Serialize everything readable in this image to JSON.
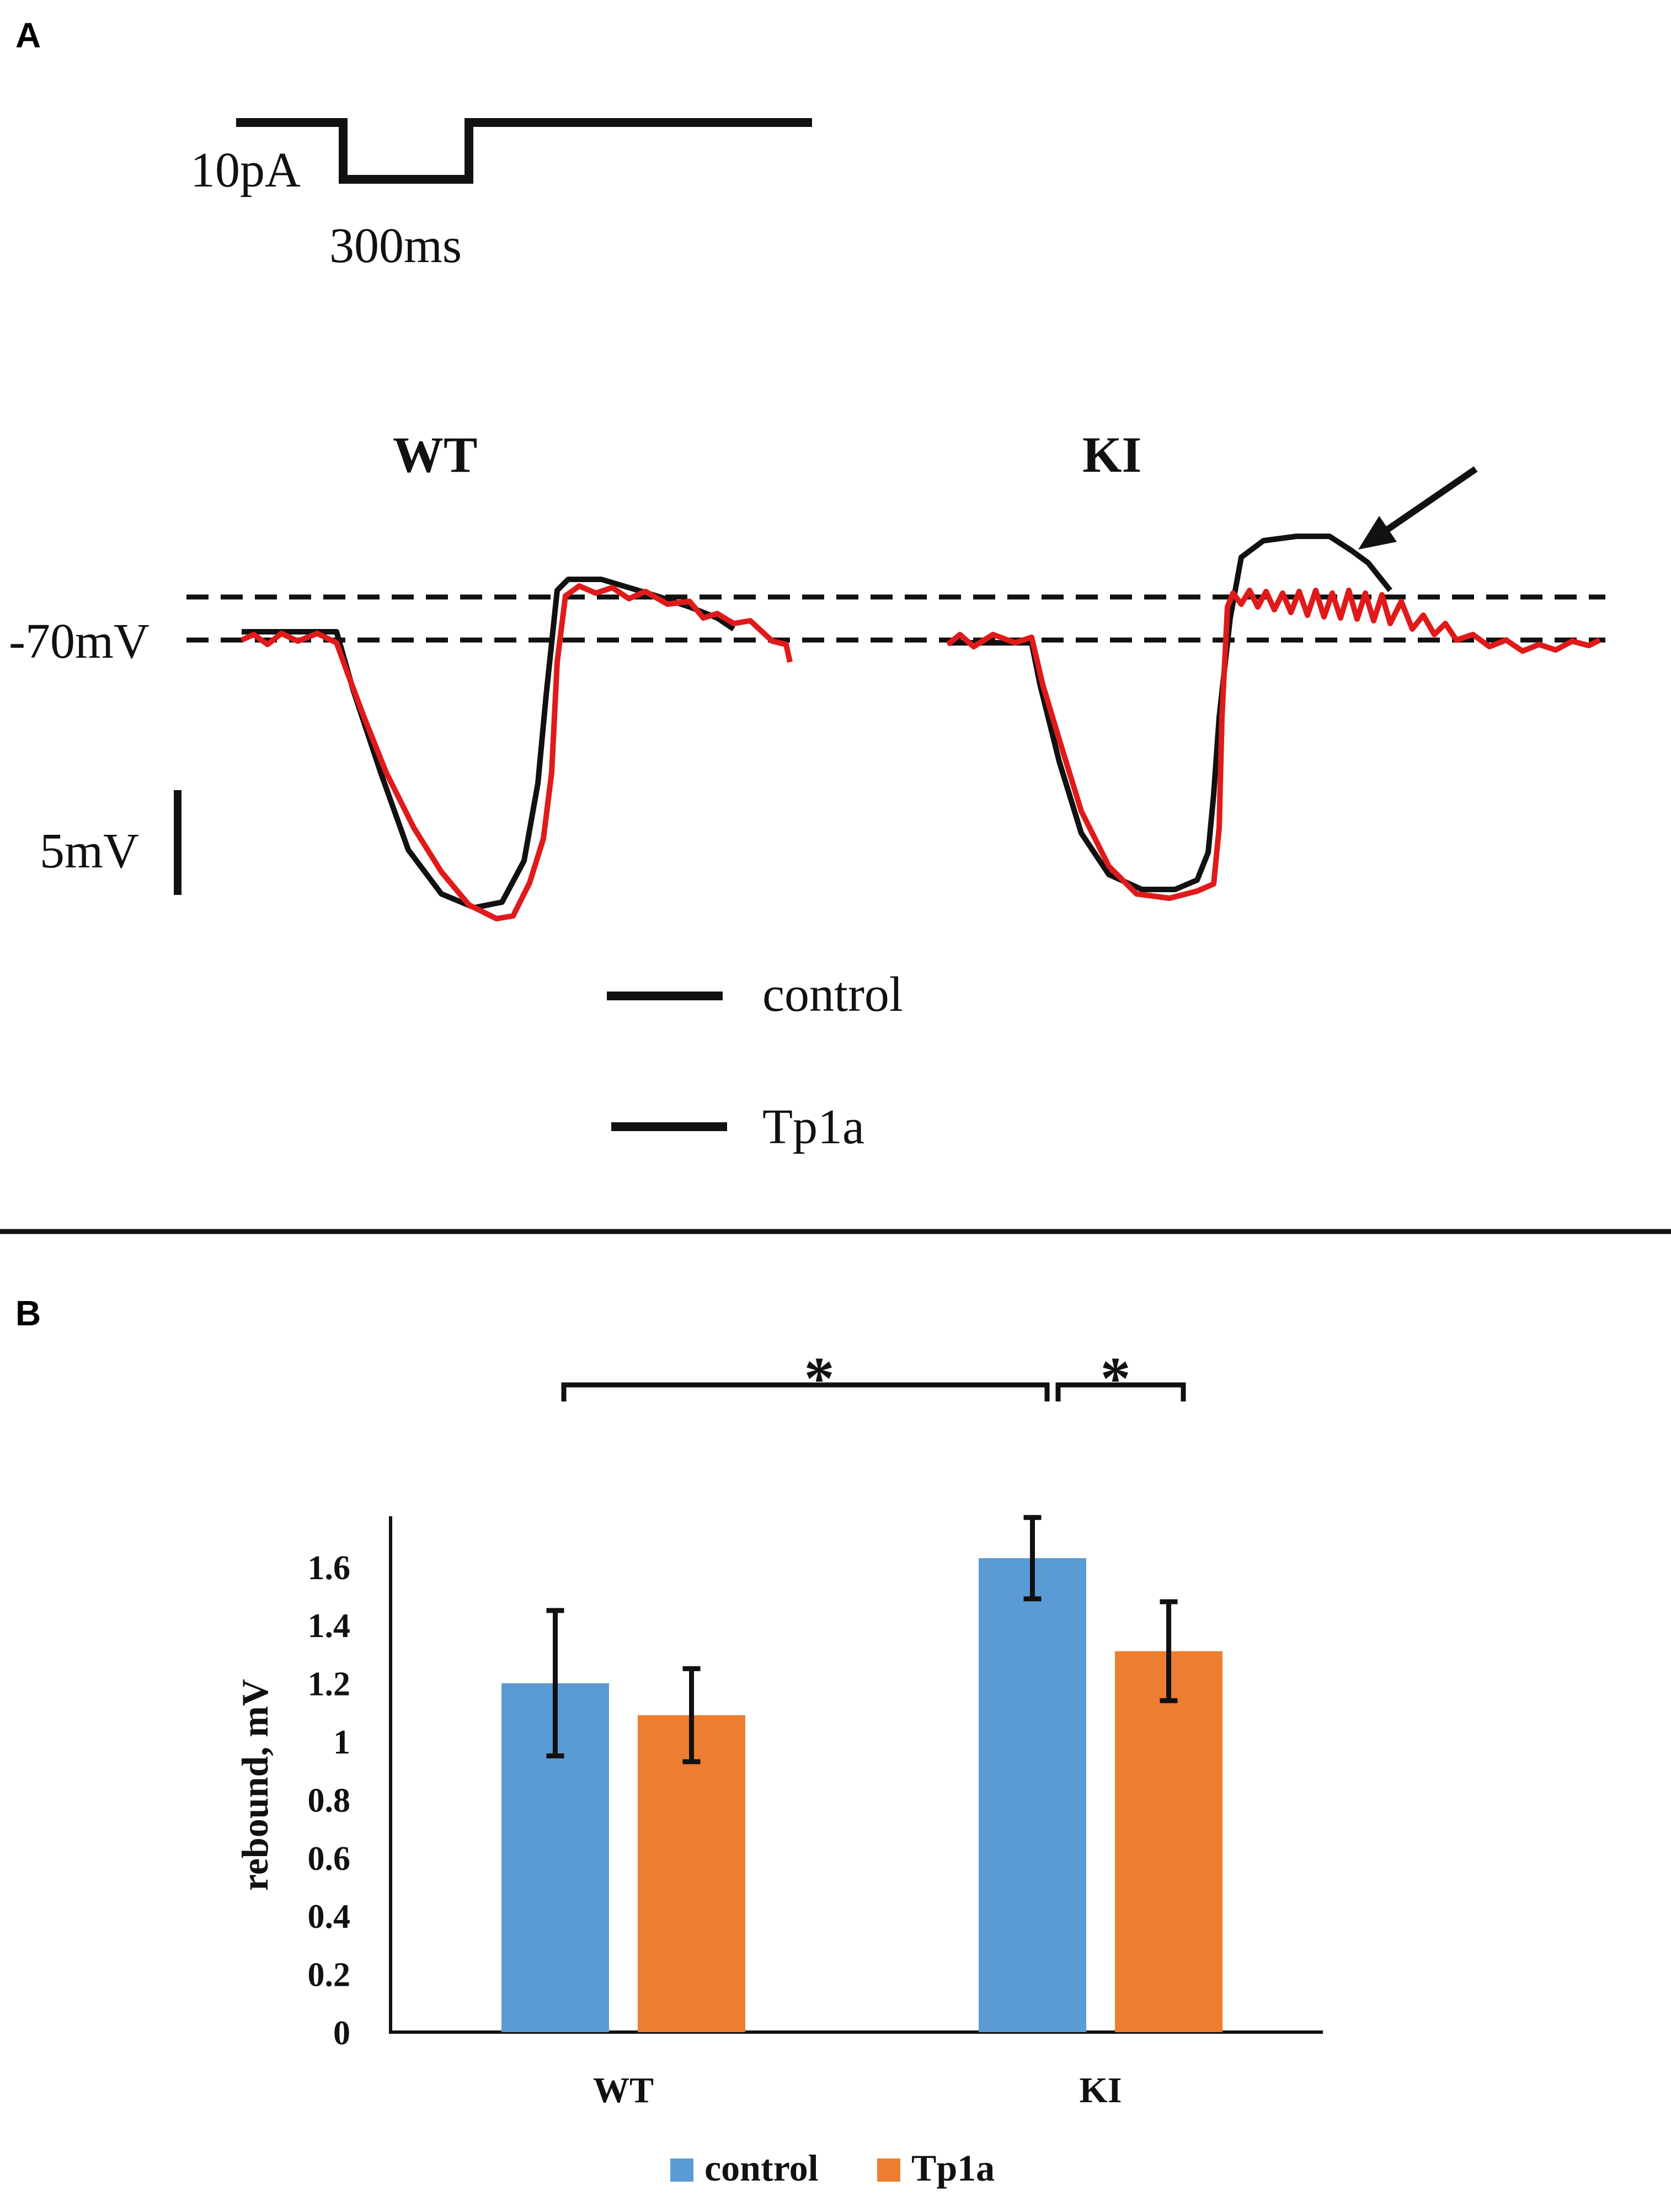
{
  "colors": {
    "control": "#5b9bd5",
    "tp1a": "#ed7d31",
    "trace_control": "#111111",
    "trace_tp1a": "#e01a1a",
    "ink": "#111111"
  },
  "panel_a": {
    "letter": "A",
    "stim": {
      "current_label": "10pA",
      "time_label": "300ms"
    },
    "groups": [
      "WT",
      "KI"
    ],
    "baseline_label": "-70mV",
    "scale_label": "5mV",
    "legend": [
      {
        "label": "control",
        "icon": "black-line-icon"
      },
      {
        "label": "Tp1a",
        "icon": "black-line-icon"
      }
    ],
    "arrow_icon": "arrow-icon"
  },
  "panel_b": {
    "letter": "B",
    "significance": [
      "*",
      "*"
    ]
  },
  "chart_data": {
    "type": "bar",
    "title": "",
    "xlabel": "",
    "ylabel": "rebound, mV",
    "categories": [
      "WT",
      "KI"
    ],
    "ylim": [
      0,
      1.8
    ],
    "yticks": [
      "0",
      "0.2",
      "0.4",
      "0.6",
      "0.8",
      "1",
      "1.2",
      "1.4",
      "1.6"
    ],
    "series": [
      {
        "name": "control",
        "values": [
          1.2,
          1.63
        ],
        "errors": [
          0.25,
          0.14
        ]
      },
      {
        "name": "Tp1a",
        "values": [
          1.09,
          1.31
        ],
        "errors": [
          0.16,
          0.17
        ]
      }
    ],
    "legend_position": "bottom"
  }
}
